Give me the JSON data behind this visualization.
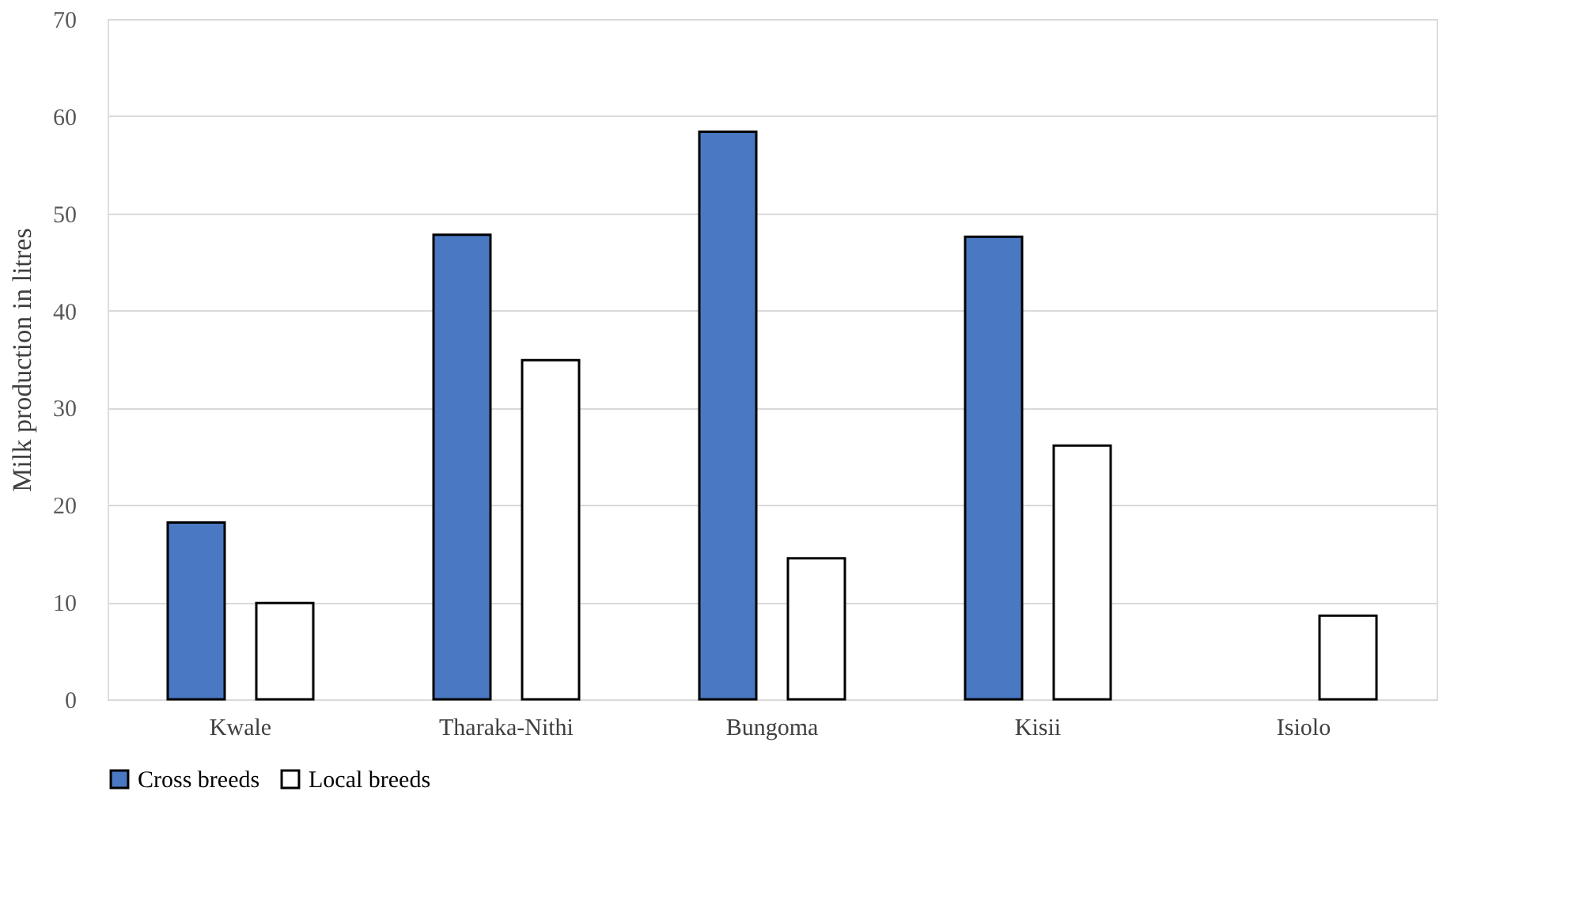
{
  "chart_data": {
    "type": "bar",
    "ylabel": "Milk production in litres",
    "categories": [
      "Kwale",
      "Tharaka-Nithi",
      "Bungoma",
      "Kisii",
      "Isiolo"
    ],
    "series": [
      {
        "name": "Cross breeds",
        "color": "#4a78c2",
        "values": [
          18.2,
          47.8,
          58.4,
          47.6,
          null
        ]
      },
      {
        "name": "Local breeds",
        "color": "#ffffff",
        "values": [
          9.9,
          34.9,
          14.5,
          26.1,
          8.6
        ]
      }
    ],
    "ylim": [
      0,
      70
    ],
    "yticks": [
      0,
      10,
      20,
      30,
      40,
      50,
      60,
      70
    ],
    "grid": "y",
    "legend": "bottom"
  }
}
